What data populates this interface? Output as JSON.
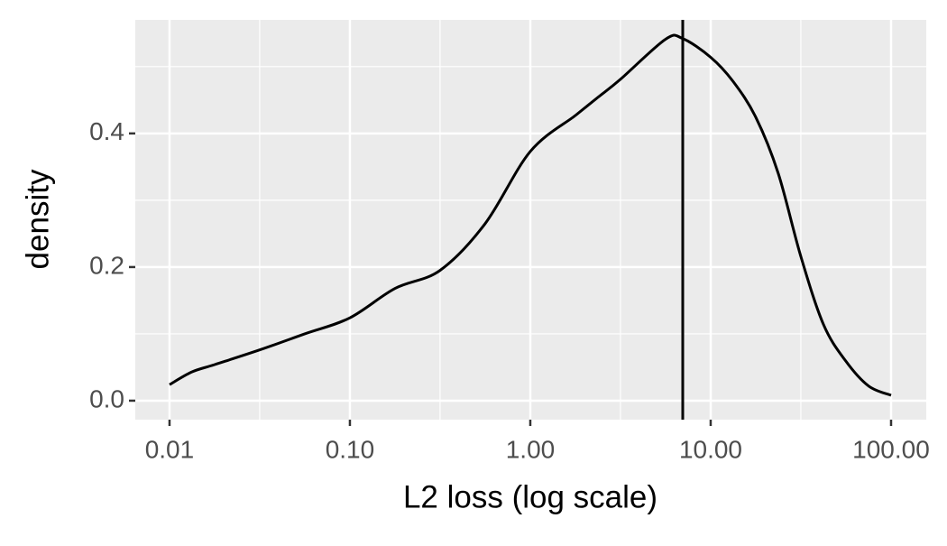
{
  "chart_data": {
    "type": "line",
    "x_label": "L2 loss (log scale)",
    "y_label": "density",
    "x": [
      0.01,
      0.0133,
      0.0178,
      0.0316,
      0.0562,
      0.1,
      0.178,
      0.316,
      0.562,
      1.0,
      1.78,
      2.37,
      3.16,
      5.62,
      7,
      10,
      13.3,
      17.8,
      23.7,
      31.6,
      42.2,
      56.2,
      75,
      100
    ],
    "series": [
      {
        "color": "#000000",
        "values": [
          0.024,
          0.043,
          0.054,
          0.076,
          0.1,
          0.124,
          0.168,
          0.195,
          0.265,
          0.373,
          0.427,
          0.454,
          0.481,
          0.541,
          0.542,
          0.514,
          0.478,
          0.424,
          0.34,
          0.216,
          0.114,
          0.059,
          0.022,
          0.008
        ]
      }
    ],
    "vline": 7,
    "x_log": true,
    "xlim": [
      0.00646,
      156.7
    ],
    "ylim": [
      -0.0284,
      0.57
    ],
    "xticks": [
      {
        "value": 0.01,
        "label": "0.01"
      },
      {
        "value": 0.1,
        "label": "0.10"
      },
      {
        "value": 1,
        "label": "1.00"
      },
      {
        "value": 10,
        "label": "10.00"
      },
      {
        "value": 100,
        "label": "100.00"
      }
    ],
    "yticks": [
      {
        "value": 0,
        "label": "0.0"
      },
      0.2,
      0.4
    ],
    "xminorticks": [
      0.0316,
      0.316,
      3.16,
      31.6
    ],
    "yminorticks": [
      0.1,
      0.3,
      0.5
    ],
    "grid": true
  }
}
